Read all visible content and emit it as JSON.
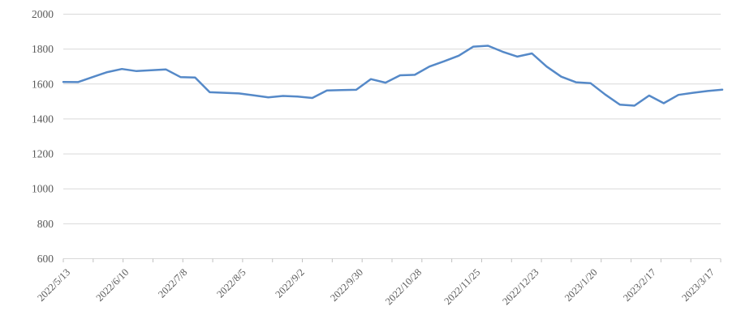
{
  "chart_data": {
    "type": "line",
    "title": "",
    "legend_position": "none",
    "grid": "horizontal",
    "ylim": [
      600,
      2000
    ],
    "y_ticks": [
      600,
      800,
      1000,
      1200,
      1400,
      1600,
      1800,
      2000
    ],
    "x_label_every_n_points": 4,
    "visible_x_labels": [
      "2022/5/13",
      "2022/6/10",
      "2022/7/8",
      "2022/8/5",
      "2022/9/2",
      "2022/9/30",
      "2022/10/28",
      "2022/11/25",
      "2022/12/23",
      "2023/1/20",
      "2023/2/17",
      "2023/3/17"
    ],
    "x": [
      "2022/5/13",
      "2022/5/20",
      "2022/5/27",
      "2022/6/3",
      "2022/6/10",
      "2022/6/17",
      "2022/6/24",
      "2022/7/1",
      "2022/7/8",
      "2022/7/15",
      "2022/7/22",
      "2022/7/29",
      "2022/8/5",
      "2022/8/12",
      "2022/8/19",
      "2022/8/26",
      "2022/9/2",
      "2022/9/9",
      "2022/9/16",
      "2022/9/23",
      "2022/9/30",
      "2022/10/7",
      "2022/10/14",
      "2022/10/21",
      "2022/10/28",
      "2022/11/4",
      "2022/11/11",
      "2022/11/18",
      "2022/11/25",
      "2022/12/2",
      "2022/12/9",
      "2022/12/16",
      "2022/12/23",
      "2022/12/30",
      "2023/1/6",
      "2023/1/13",
      "2023/1/20",
      "2023/1/27",
      "2023/2/3",
      "2023/2/10",
      "2023/2/17",
      "2023/2/24",
      "2023/3/3",
      "2023/3/10",
      "2023/3/17",
      "2023/3/24"
    ],
    "series": [
      {
        "name": "price",
        "values": [
          1612,
          1611,
          1640,
          1668,
          1686,
          1674,
          1679,
          1684,
          1640,
          1637,
          1553,
          1550,
          1546,
          1535,
          1524,
          1532,
          1528,
          1520,
          1563,
          1565,
          1567,
          1628,
          1608,
          1650,
          1653,
          1700,
          1730,
          1762,
          1814,
          1819,
          1785,
          1757,
          1775,
          1700,
          1642,
          1610,
          1605,
          1540,
          1482,
          1476,
          1534,
          1490,
          1538,
          1550,
          1560,
          1568
        ]
      }
    ],
    "colors": {
      "line": "#5589c8",
      "gridline": "#d9d9d9",
      "tick": "#c0c0c0",
      "axis_text": "#595959",
      "background": "#ffffff"
    }
  }
}
